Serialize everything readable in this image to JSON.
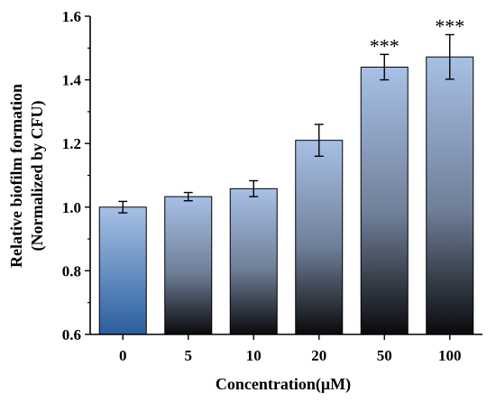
{
  "chart_data": {
    "type": "bar",
    "xlabel": "Concentration(μM)",
    "ylabel_line1": "Relative biofilm formation",
    "ylabel_line2": "(Normalized by CFU)",
    "ylim": [
      0.6,
      1.6
    ],
    "yticks": [
      "0.6",
      "0.8",
      "1.0",
      "1.2",
      "1.4",
      "1.6"
    ],
    "categories": [
      "0",
      "5",
      "10",
      "20",
      "50",
      "100"
    ],
    "values": [
      1.0,
      1.033,
      1.058,
      1.21,
      1.44,
      1.472
    ],
    "errors": [
      0.018,
      0.013,
      0.025,
      0.05,
      0.04,
      0.07
    ],
    "annotations": [
      "",
      "",
      "",
      "",
      "***",
      "***"
    ],
    "colors": {
      "bar_top": "#a8c0e6",
      "bar_mid": "#6f7f98",
      "bar_bottom": "#0a0a0c",
      "first_bar_bottom": "#2a5f9e",
      "axis": "#000000"
    }
  }
}
